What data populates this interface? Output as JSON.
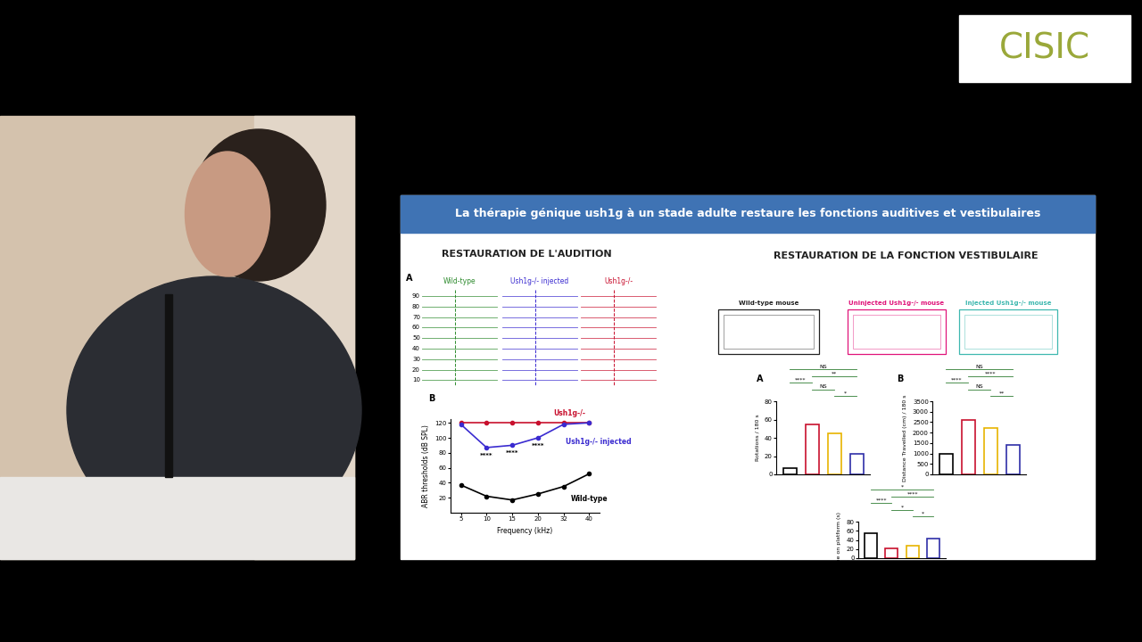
{
  "logo": "CISIC",
  "slide": {
    "title": "La thérapie génique ush1g à un stade adulte restaure les fonctions auditives et vestibulaires",
    "left_heading": "RESTAURATION DE L'AUDITION",
    "right_heading": "RESTAURATION DE LA FONCTION VESTIBULAIRE",
    "abr_traces": {
      "panel": "A",
      "columns": [
        {
          "name": "Wild-type",
          "color": "#2e8b2e"
        },
        {
          "name": "Ush1g-/- injected",
          "color": "#3a2bd0"
        },
        {
          "name": "Ush1g-/-",
          "color": "#c8102e"
        }
      ],
      "levels": [
        90,
        80,
        70,
        60,
        50,
        40,
        30,
        20,
        10
      ]
    },
    "trajectories": {
      "labels": [
        "Wild-type mouse",
        "Uninjected Ush1g-/- mouse",
        "Injected Ush1g-/- mouse"
      ],
      "colors": [
        "#222222",
        "#e0147a",
        "#3fb8b0"
      ]
    }
  },
  "chart_data": [
    {
      "type": "line",
      "panel": "B",
      "x_label": "Frequency (kHz)",
      "y_label": "ABR thresholds (dB SPL)",
      "categories": [
        "5",
        "10",
        "15",
        "20",
        "32",
        "40"
      ],
      "ylim": [
        0,
        125
      ],
      "yticks": [
        20,
        40,
        60,
        80,
        100,
        120
      ],
      "marker": "o",
      "series": [
        {
          "name": "Ush1g-/-",
          "color": "#c8102e",
          "values": [
            120,
            120,
            120,
            120,
            120,
            120
          ]
        },
        {
          "name": "Ush1g-/- injected",
          "color": "#3a2bd0",
          "values": [
            118,
            87,
            90,
            100,
            118,
            120
          ]
        },
        {
          "name": "Wild-type",
          "color": "#000000",
          "values": [
            37,
            22,
            17,
            25,
            35,
            52
          ]
        }
      ],
      "annotations": [
        {
          "category": "10",
          "y": 80,
          "text": "****"
        },
        {
          "category": "15",
          "y": 83,
          "text": "****"
        },
        {
          "category": "20",
          "y": 93,
          "text": "****"
        }
      ]
    },
    {
      "type": "bar",
      "panel": "A",
      "y_label": "Rotations / 180 s",
      "categories": [
        null,
        null,
        null,
        null
      ],
      "values": [
        7,
        55,
        45,
        22
      ],
      "colors": [
        "#000000",
        "#c8102e",
        "#e8b400",
        "#2f2fa8"
      ],
      "ylim": [
        0,
        80
      ],
      "yticks": [
        0,
        20,
        40,
        60,
        80
      ],
      "tick_labels": "y",
      "brackets": [
        {
          "from": 0,
          "to": 3,
          "label": "NS"
        },
        {
          "from": 1,
          "to": 3,
          "label": "**"
        },
        {
          "from": 0,
          "to": 1,
          "label": "****"
        },
        {
          "from": 1,
          "to": 2,
          "label": "NS"
        },
        {
          "from": 2,
          "to": 3,
          "label": "*"
        }
      ]
    },
    {
      "type": "bar",
      "panel": "B",
      "y_label": "Distance Travelled (cm) / 180 s",
      "categories": [
        null,
        null,
        null,
        null
      ],
      "values": [
        1000,
        2600,
        2200,
        1400
      ],
      "colors": [
        "#000000",
        "#c8102e",
        "#e8b400",
        "#2f2fa8"
      ],
      "ylim": [
        0,
        3500
      ],
      "yticks": [
        0,
        500,
        1000,
        1500,
        2000,
        2500,
        3000,
        3500
      ],
      "tick_labels": "y",
      "brackets": [
        {
          "from": 0,
          "to": 3,
          "label": "NS"
        },
        {
          "from": 1,
          "to": 3,
          "label": "****"
        },
        {
          "from": 0,
          "to": 1,
          "label": "****"
        },
        {
          "from": 1,
          "to": 2,
          "label": "NS"
        },
        {
          "from": 2,
          "to": 3,
          "label": "**"
        }
      ]
    },
    {
      "type": "bar",
      "y_label": "Time on platform (s)",
      "categories": [
        null,
        null,
        null,
        null
      ],
      "values": [
        55,
        21,
        28,
        43
      ],
      "colors": [
        "#000000",
        "#c8102e",
        "#e8b400",
        "#2f2fa8"
      ],
      "ylim": [
        0,
        80
      ],
      "yticks": [
        0,
        20,
        40,
        60,
        80
      ],
      "tick_labels": "y",
      "brackets": [
        {
          "from": 0,
          "to": 3,
          "label": "*"
        },
        {
          "from": 1,
          "to": 3,
          "label": "****"
        },
        {
          "from": 0,
          "to": 1,
          "label": "****"
        },
        {
          "from": 1,
          "to": 2,
          "label": "*"
        },
        {
          "from": 2,
          "to": 3,
          "label": "*"
        }
      ]
    }
  ]
}
